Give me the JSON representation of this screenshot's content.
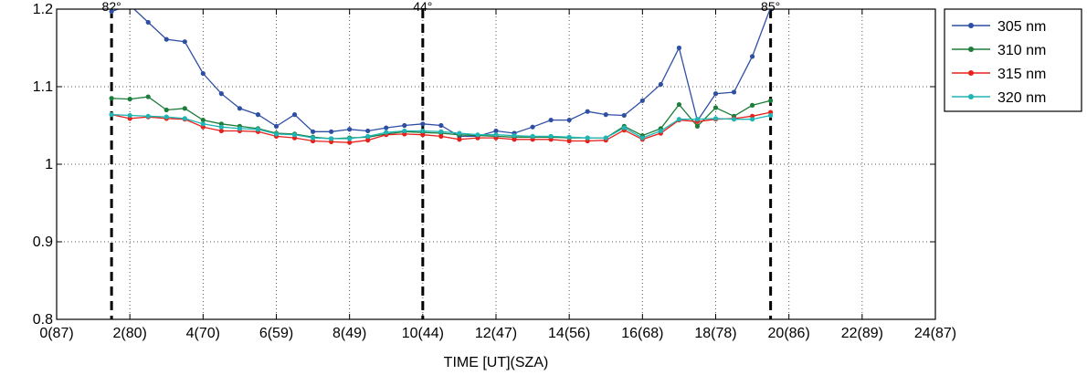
{
  "chart_data": {
    "type": "line",
    "xlabel": "TIME [UT](SZA)",
    "ylabel": "",
    "xlim": [
      0,
      24
    ],
    "ylim": [
      0.8,
      1.2
    ],
    "x_ticks": [
      0,
      2,
      4,
      6,
      8,
      10,
      12,
      14,
      16,
      18,
      20,
      22,
      24
    ],
    "x_tick_labels": [
      "0(87)",
      "2(80)",
      "4(70)",
      "6(59)",
      "8(49)",
      "10(44)",
      "12(47)",
      "14(56)",
      "16(68)",
      "18(78)",
      "20(86)",
      "22(89)",
      "24(87)"
    ],
    "y_ticks": [
      0.8,
      0.9,
      1.0,
      1.1,
      1.2
    ],
    "y_tick_labels": [
      "0.8",
      "0.9",
      "1",
      "1.1",
      "1.2"
    ],
    "grid": true,
    "legend_position": "outside-top-right",
    "vlines": [
      {
        "x": 1.5,
        "label": "82°"
      },
      {
        "x": 10.0,
        "label": "44°"
      },
      {
        "x": 19.5,
        "label": "85°"
      }
    ],
    "x": [
      1.5,
      2.0,
      2.5,
      3.0,
      3.5,
      4.0,
      4.5,
      5.0,
      5.5,
      6.0,
      6.5,
      7.0,
      7.5,
      8.0,
      8.5,
      9.0,
      9.5,
      10.0,
      10.5,
      11.0,
      11.5,
      12.0,
      12.5,
      13.0,
      13.5,
      14.0,
      14.5,
      15.0,
      15.5,
      16.0,
      16.5,
      17.0,
      17.5,
      18.0,
      18.5,
      19.0,
      19.5
    ],
    "series": [
      {
        "name": "305 nm",
        "color": "#2e4fa3",
        "values": [
          1.197,
          1.205,
          1.183,
          1.161,
          1.158,
          1.117,
          1.091,
          1.072,
          1.064,
          1.049,
          1.064,
          1.042,
          1.042,
          1.045,
          1.043,
          1.047,
          1.05,
          1.052,
          1.05,
          1.036,
          1.036,
          1.043,
          1.04,
          1.048,
          1.057,
          1.057,
          1.068,
          1.064,
          1.063,
          1.082,
          1.103,
          1.15,
          1.056,
          1.091,
          1.093,
          1.139,
          1.202
        ]
      },
      {
        "name": "310 nm",
        "color": "#1d7d3a",
        "values": [
          1.085,
          1.084,
          1.087,
          1.07,
          1.072,
          1.057,
          1.052,
          1.049,
          1.046,
          1.04,
          1.039,
          1.035,
          1.033,
          1.034,
          1.035,
          1.039,
          1.042,
          1.041,
          1.04,
          1.038,
          1.037,
          1.036,
          1.035,
          1.035,
          1.035,
          1.034,
          1.034,
          1.034,
          1.049,
          1.037,
          1.046,
          1.077,
          1.049,
          1.073,
          1.062,
          1.076,
          1.082
        ]
      },
      {
        "name": "315 nm",
        "color": "#e8201c",
        "values": [
          1.064,
          1.059,
          1.061,
          1.059,
          1.058,
          1.048,
          1.043,
          1.043,
          1.042,
          1.036,
          1.034,
          1.03,
          1.029,
          1.028,
          1.031,
          1.038,
          1.039,
          1.038,
          1.036,
          1.032,
          1.034,
          1.034,
          1.032,
          1.032,
          1.032,
          1.03,
          1.03,
          1.031,
          1.044,
          1.032,
          1.04,
          1.057,
          1.055,
          1.058,
          1.059,
          1.062,
          1.067
        ]
      },
      {
        "name": "320 nm",
        "color": "#1fb5b5",
        "values": [
          1.064,
          1.063,
          1.062,
          1.061,
          1.059,
          1.052,
          1.048,
          1.046,
          1.045,
          1.039,
          1.038,
          1.034,
          1.033,
          1.033,
          1.036,
          1.041,
          1.043,
          1.043,
          1.042,
          1.04,
          1.038,
          1.038,
          1.037,
          1.036,
          1.036,
          1.035,
          1.034,
          1.034,
          1.047,
          1.034,
          1.043,
          1.058,
          1.058,
          1.059,
          1.058,
          1.058,
          1.063
        ]
      }
    ]
  }
}
